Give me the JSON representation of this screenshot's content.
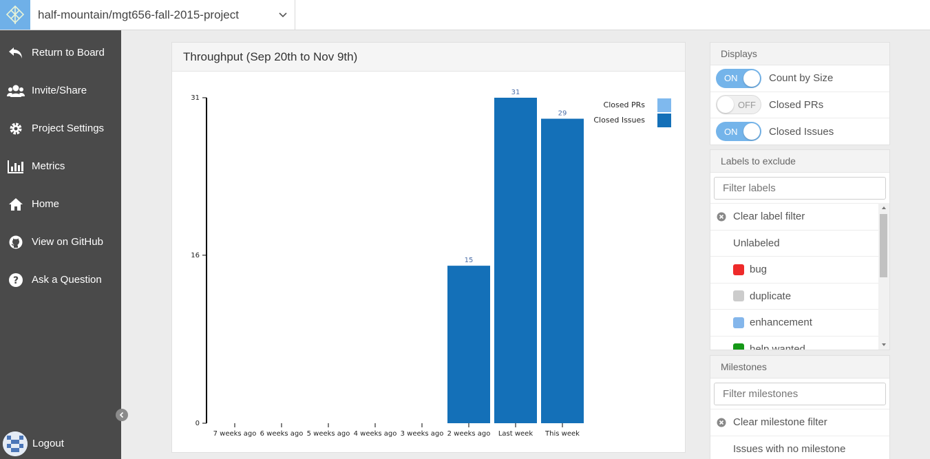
{
  "header": {
    "repo": "half-mountain/mgt656-fall-2015-project"
  },
  "sidebar": {
    "items": [
      {
        "label": "Return to Board",
        "icon": "return-arrow-icon"
      },
      {
        "label": "Invite/Share",
        "icon": "users-icon"
      },
      {
        "label": "Project Settings",
        "icon": "gear-icon"
      },
      {
        "label": "Metrics",
        "icon": "bar-chart-icon"
      },
      {
        "label": "Home",
        "icon": "home-icon"
      },
      {
        "label": "View on GitHub",
        "icon": "github-icon"
      },
      {
        "label": "Ask a Question",
        "icon": "question-icon"
      }
    ],
    "logout": "Logout"
  },
  "chart": {
    "title": "Throughput (Sep 20th to Nov 9th)"
  },
  "chart_data": {
    "type": "bar",
    "categories": [
      "7 weeks ago",
      "6 weeks ago",
      "5 weeks ago",
      "4 weeks ago",
      "3 weeks ago",
      "2 weeks ago",
      "Last week",
      "This week"
    ],
    "series": [
      {
        "name": "Closed PRs",
        "color": "#7fb9ee",
        "values": [
          0,
          0,
          0,
          0,
          0,
          0,
          0,
          0
        ]
      },
      {
        "name": "Closed Issues",
        "color": "#1470b8",
        "values": [
          0,
          0,
          0,
          0,
          0,
          15,
          31,
          29
        ]
      }
    ],
    "data_labels": [
      "",
      "",
      "",
      "",
      "",
      "15",
      "31",
      "29"
    ],
    "yticks": [
      "0",
      "16",
      "31"
    ],
    "ylim": [
      0,
      31
    ],
    "legend": "top-right",
    "grid": false
  },
  "displays": {
    "title": "Displays",
    "toggles": [
      {
        "state": "ON",
        "label": "Count by Size"
      },
      {
        "state": "OFF",
        "label": "Closed PRs"
      },
      {
        "state": "ON",
        "label": "Closed Issues"
      }
    ]
  },
  "labels": {
    "title": "Labels to exclude",
    "placeholder": "Filter labels",
    "clear": "Clear label filter",
    "unlabeled": "Unlabeled",
    "items": [
      {
        "name": "bug",
        "color": "#ee2a2a"
      },
      {
        "name": "duplicate",
        "color": "#cccccc"
      },
      {
        "name": "enhancement",
        "color": "#84b6eb"
      },
      {
        "name": "help wanted",
        "color": "#159818"
      }
    ]
  },
  "milestones": {
    "title": "Milestones",
    "placeholder": "Filter milestones",
    "clear": "Clear milestone filter",
    "no_milestone": "Issues with no milestone"
  }
}
